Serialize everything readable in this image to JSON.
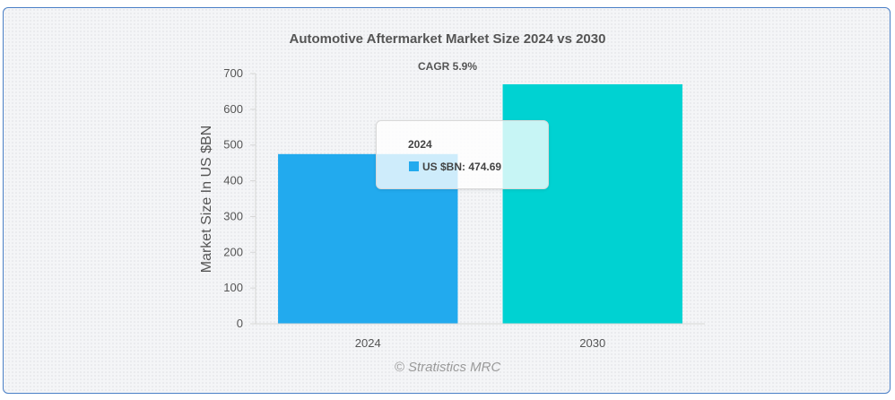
{
  "chart_data": {
    "type": "bar",
    "title": "Automotive Aftermarket Market Size 2024 vs 2030",
    "subtitle": "CAGR 5.9%",
    "categories": [
      "2024",
      "2030"
    ],
    "series": [
      {
        "name": "US $BN",
        "values": [
          474.69,
          670.0
        ]
      }
    ],
    "bar_colors": [
      "#22aaee",
      "#00d2d2"
    ],
    "ylabel": "Market Size In US $BN",
    "xlabel": "",
    "ylim": [
      0,
      700
    ],
    "yticks": [
      0,
      100,
      200,
      300,
      400,
      500,
      600,
      700
    ],
    "grid": false,
    "legend": "none"
  },
  "tooltip": {
    "title": "2024",
    "series_label": "US $BN",
    "value_text": "474.69",
    "swatch_color": "#22aaee"
  },
  "watermark": "© Stratistics MRC"
}
